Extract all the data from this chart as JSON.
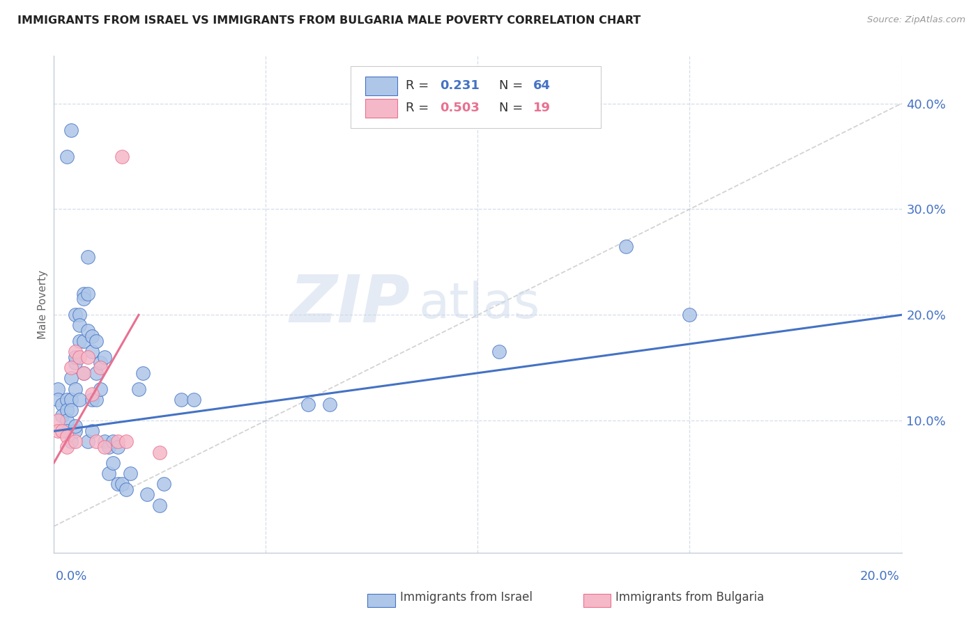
{
  "title": "IMMIGRANTS FROM ISRAEL VS IMMIGRANTS FROM BULGARIA MALE POVERTY CORRELATION CHART",
  "source": "Source: ZipAtlas.com",
  "ylabel": "Male Poverty",
  "right_yticks": [
    "40.0%",
    "30.0%",
    "20.0%",
    "10.0%"
  ],
  "right_ytick_vals": [
    0.4,
    0.3,
    0.2,
    0.1
  ],
  "xmin": 0.0,
  "xmax": 0.2,
  "ymin": -0.025,
  "ymax": 0.445,
  "israel_R": "0.231",
  "israel_N": "64",
  "bulgaria_R": "0.503",
  "bulgaria_N": "19",
  "israel_color": "#aec6e8",
  "bulgaria_color": "#f5b8c8",
  "israel_line_color": "#4472c4",
  "bulgaria_line_color": "#e87090",
  "ref_line_color": "#c8c8c8",
  "grid_color": "#d5dde8",
  "background_color": "#ffffff",
  "watermark_zip": "ZIP",
  "watermark_atlas": "atlas",
  "legend_text_color": "#555555",
  "legend_val_color": "#4472c4",
  "israel_scatter_x": [
    0.001,
    0.001,
    0.002,
    0.002,
    0.003,
    0.003,
    0.003,
    0.003,
    0.004,
    0.004,
    0.004,
    0.004,
    0.005,
    0.005,
    0.005,
    0.005,
    0.005,
    0.006,
    0.006,
    0.006,
    0.006,
    0.007,
    0.007,
    0.007,
    0.007,
    0.008,
    0.008,
    0.008,
    0.008,
    0.009,
    0.009,
    0.009,
    0.009,
    0.01,
    0.01,
    0.01,
    0.011,
    0.011,
    0.012,
    0.012,
    0.013,
    0.013,
    0.014,
    0.014,
    0.015,
    0.015,
    0.016,
    0.017,
    0.018,
    0.02,
    0.021,
    0.022,
    0.025,
    0.026,
    0.03,
    0.033,
    0.06,
    0.065,
    0.105,
    0.135,
    0.15,
    0.003,
    0.004,
    0.005
  ],
  "israel_scatter_y": [
    0.13,
    0.12,
    0.115,
    0.105,
    0.12,
    0.11,
    0.1,
    0.09,
    0.14,
    0.12,
    0.11,
    0.08,
    0.2,
    0.155,
    0.13,
    0.09,
    0.095,
    0.2,
    0.19,
    0.175,
    0.12,
    0.22,
    0.215,
    0.175,
    0.145,
    0.255,
    0.22,
    0.185,
    0.08,
    0.18,
    0.165,
    0.12,
    0.09,
    0.175,
    0.145,
    0.12,
    0.155,
    0.13,
    0.16,
    0.08,
    0.075,
    0.05,
    0.08,
    0.06,
    0.075,
    0.04,
    0.04,
    0.035,
    0.05,
    0.13,
    0.145,
    0.03,
    0.02,
    0.04,
    0.12,
    0.12,
    0.115,
    0.115,
    0.165,
    0.265,
    0.2,
    0.35,
    0.375,
    0.16
  ],
  "bulgaria_scatter_x": [
    0.001,
    0.001,
    0.002,
    0.003,
    0.003,
    0.004,
    0.005,
    0.005,
    0.006,
    0.007,
    0.008,
    0.009,
    0.01,
    0.011,
    0.012,
    0.015,
    0.016,
    0.017,
    0.025
  ],
  "bulgaria_scatter_y": [
    0.1,
    0.09,
    0.09,
    0.085,
    0.075,
    0.15,
    0.165,
    0.08,
    0.16,
    0.145,
    0.16,
    0.125,
    0.08,
    0.15,
    0.075,
    0.08,
    0.35,
    0.08,
    0.07
  ],
  "israel_trend_x": [
    0.0,
    0.2
  ],
  "israel_trend_y": [
    0.09,
    0.2
  ],
  "bulgaria_trend_x": [
    0.0,
    0.02
  ],
  "bulgaria_trend_y": [
    0.06,
    0.2
  ],
  "ref_line_x": [
    0.0,
    0.2
  ],
  "ref_line_y": [
    0.0,
    0.4
  ]
}
